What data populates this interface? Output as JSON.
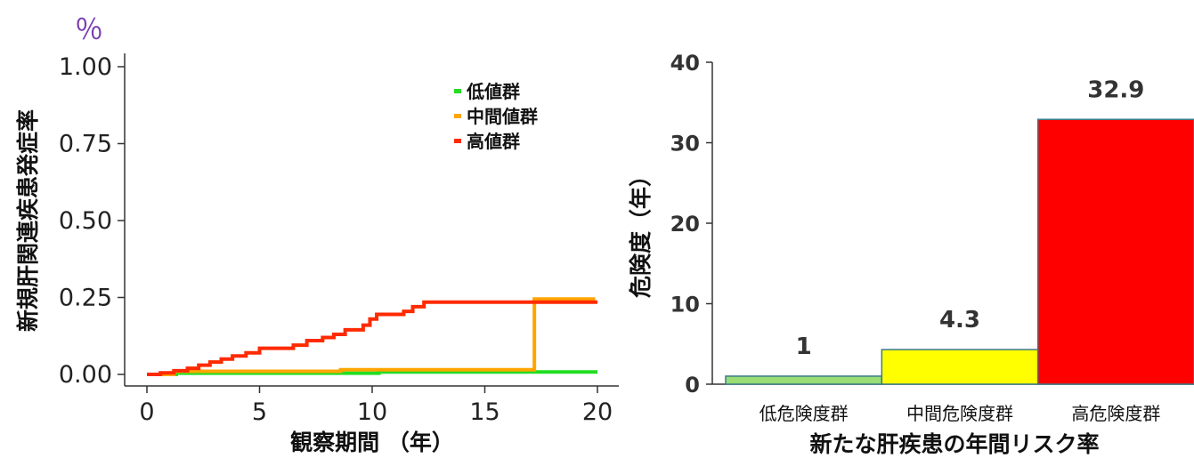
{
  "chart_data": [
    {
      "type": "line",
      "step": true,
      "unit_label": "％",
      "xlabel": "観察期間 （年）",
      "ylabel": "新規肝関連疾患発症率",
      "xlim": [
        0,
        20
      ],
      "ylim": [
        0,
        1
      ],
      "x_ticks": [
        "0",
        "5",
        "10",
        "15",
        "20"
      ],
      "y_ticks": [
        "0.00",
        "0.25",
        "0.50",
        "0.75",
        "1.00"
      ],
      "legend_position": "top-right",
      "series": [
        {
          "name": "低値群",
          "color": "#22dd22",
          "x": [
            0,
            1.3,
            10.3,
            20
          ],
          "y": [
            0,
            0.004,
            0.008,
            0.008
          ]
        },
        {
          "name": "中間値群",
          "color": "#ffa500",
          "x": [
            0,
            1.2,
            8.6,
            17.2,
            19.9
          ],
          "y": [
            0,
            0.01,
            0.015,
            0.245,
            0.245
          ]
        },
        {
          "name": "高値群",
          "color": "#ff2a00",
          "x": [
            0,
            0.6,
            1.2,
            1.8,
            2.3,
            2.8,
            3.3,
            3.8,
            4.4,
            5,
            6.5,
            7.1,
            7.8,
            8.3,
            8.8,
            9.6,
            9.9,
            10.2,
            11.4,
            11.8,
            12.3,
            20
          ],
          "y": [
            0,
            0.005,
            0.012,
            0.02,
            0.03,
            0.04,
            0.05,
            0.06,
            0.07,
            0.085,
            0.095,
            0.11,
            0.12,
            0.13,
            0.145,
            0.16,
            0.18,
            0.195,
            0.205,
            0.22,
            0.235,
            0.235
          ]
        }
      ]
    },
    {
      "type": "bar",
      "xlabel": "新たな肝疾患の年間リスク率",
      "ylabel": "危険度（年）",
      "ylim": [
        0,
        40
      ],
      "y_ticks": [
        "0",
        "10",
        "20",
        "30",
        "40"
      ],
      "categories": [
        "低危険度群",
        "中間危険度群",
        "高危険度群"
      ],
      "values": [
        1,
        4.3,
        32.9
      ],
      "value_labels": [
        "1",
        "4.3",
        "32.9"
      ],
      "colors": [
        "#99dd77",
        "#ffff00",
        "#ff0000"
      ]
    }
  ]
}
